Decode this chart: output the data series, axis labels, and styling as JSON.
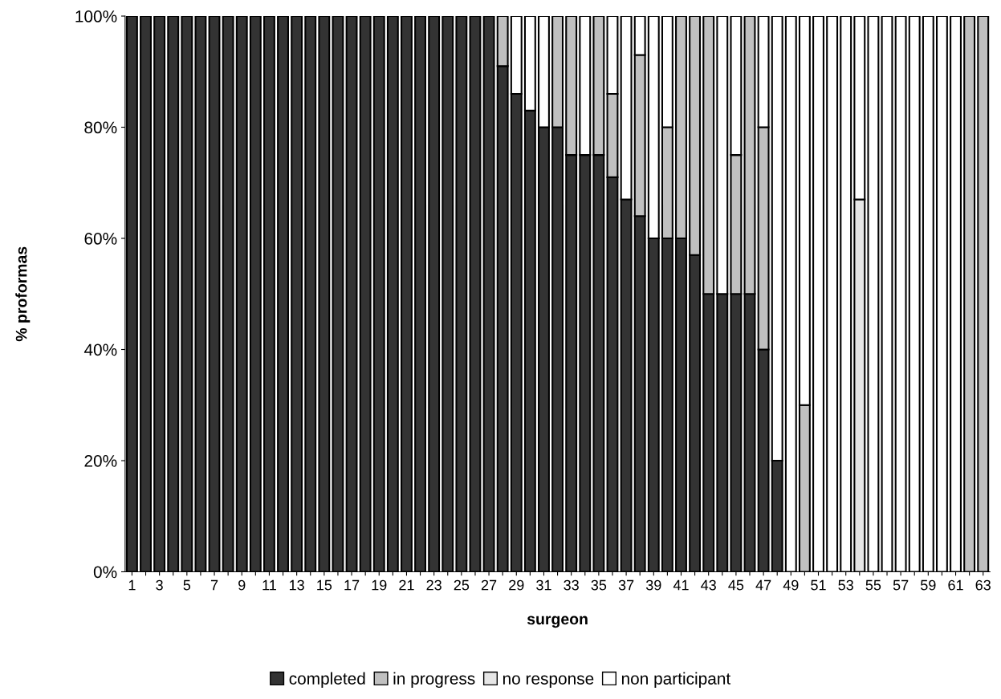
{
  "chart_data": {
    "type": "bar",
    "stacked": true,
    "xlabel": "surgeon",
    "ylabel": "% proformas",
    "categories": [
      "1",
      null,
      "3",
      null,
      "5",
      null,
      "7",
      null,
      "9",
      null,
      "11",
      null,
      "13",
      null,
      "15",
      null,
      "17",
      null,
      "19",
      null,
      "21",
      null,
      "23",
      null,
      "25",
      null,
      "27",
      null,
      "29",
      null,
      "31",
      null,
      "33",
      null,
      "35",
      null,
      "37",
      null,
      "39",
      null,
      "41",
      null,
      "43",
      null,
      "45",
      null,
      "47",
      null,
      "49",
      null,
      "51",
      null,
      "53",
      null,
      "55",
      null,
      "57",
      null,
      "59",
      null,
      "61",
      null,
      "63"
    ],
    "series": [
      {
        "name": "completed",
        "color": "#333333",
        "values": [
          100,
          100,
          100,
          100,
          100,
          100,
          100,
          100,
          100,
          100,
          100,
          100,
          100,
          100,
          100,
          100,
          100,
          100,
          100,
          100,
          100,
          100,
          100,
          100,
          100,
          100,
          100,
          91,
          86,
          83,
          80,
          80,
          75,
          75,
          75,
          71,
          67,
          64,
          60,
          60,
          60,
          57,
          50,
          50,
          50,
          50,
          40,
          20,
          0,
          0,
          0,
          0,
          0,
          0,
          0,
          0,
          0,
          0,
          0,
          0,
          0,
          0,
          0
        ]
      },
      {
        "name": "in progress",
        "color": "#c0c0c0",
        "values": [
          0,
          0,
          0,
          0,
          0,
          0,
          0,
          0,
          0,
          0,
          0,
          0,
          0,
          0,
          0,
          0,
          0,
          0,
          0,
          0,
          0,
          0,
          0,
          0,
          0,
          0,
          0,
          9,
          0,
          0,
          0,
          20,
          25,
          0,
          25,
          15,
          0,
          29,
          0,
          20,
          40,
          43,
          50,
          0,
          25,
          50,
          40,
          0,
          0,
          30,
          0,
          0,
          0,
          0,
          0,
          0,
          0,
          0,
          0,
          0,
          0,
          100,
          100
        ]
      },
      {
        "name": "no response",
        "color": "#e6e6e6",
        "values": [
          0,
          0,
          0,
          0,
          0,
          0,
          0,
          0,
          0,
          0,
          0,
          0,
          0,
          0,
          0,
          0,
          0,
          0,
          0,
          0,
          0,
          0,
          0,
          0,
          0,
          0,
          0,
          0,
          0,
          0,
          0,
          0,
          0,
          0,
          0,
          0,
          0,
          0,
          0,
          0,
          0,
          0,
          0,
          0,
          0,
          0,
          0,
          0,
          0,
          0,
          0,
          0,
          0,
          67,
          0,
          0,
          0,
          0,
          0,
          0,
          0,
          0,
          0
        ]
      },
      {
        "name": "non participant",
        "color": "#ffffff",
        "values": [
          0,
          0,
          0,
          0,
          0,
          0,
          0,
          0,
          0,
          0,
          0,
          0,
          0,
          0,
          0,
          0,
          0,
          0,
          0,
          0,
          0,
          0,
          0,
          0,
          0,
          0,
          0,
          0,
          14,
          17,
          20,
          0,
          0,
          25,
          0,
          14,
          33,
          7,
          40,
          20,
          0,
          0,
          0,
          50,
          25,
          0,
          20,
          80,
          100,
          70,
          100,
          100,
          100,
          33,
          100,
          100,
          100,
          100,
          100,
          100,
          100,
          0,
          0
        ]
      }
    ],
    "ylim": [
      0,
      100
    ],
    "yticks": [
      {
        "value": 0,
        "label": "0%"
      },
      {
        "value": 20,
        "label": "20%"
      },
      {
        "value": 40,
        "label": "40%"
      },
      {
        "value": 60,
        "label": "60%"
      },
      {
        "value": 80,
        "label": "80%"
      },
      {
        "value": 100,
        "label": "100%"
      }
    ],
    "grid": false,
    "legend": "bottom"
  }
}
